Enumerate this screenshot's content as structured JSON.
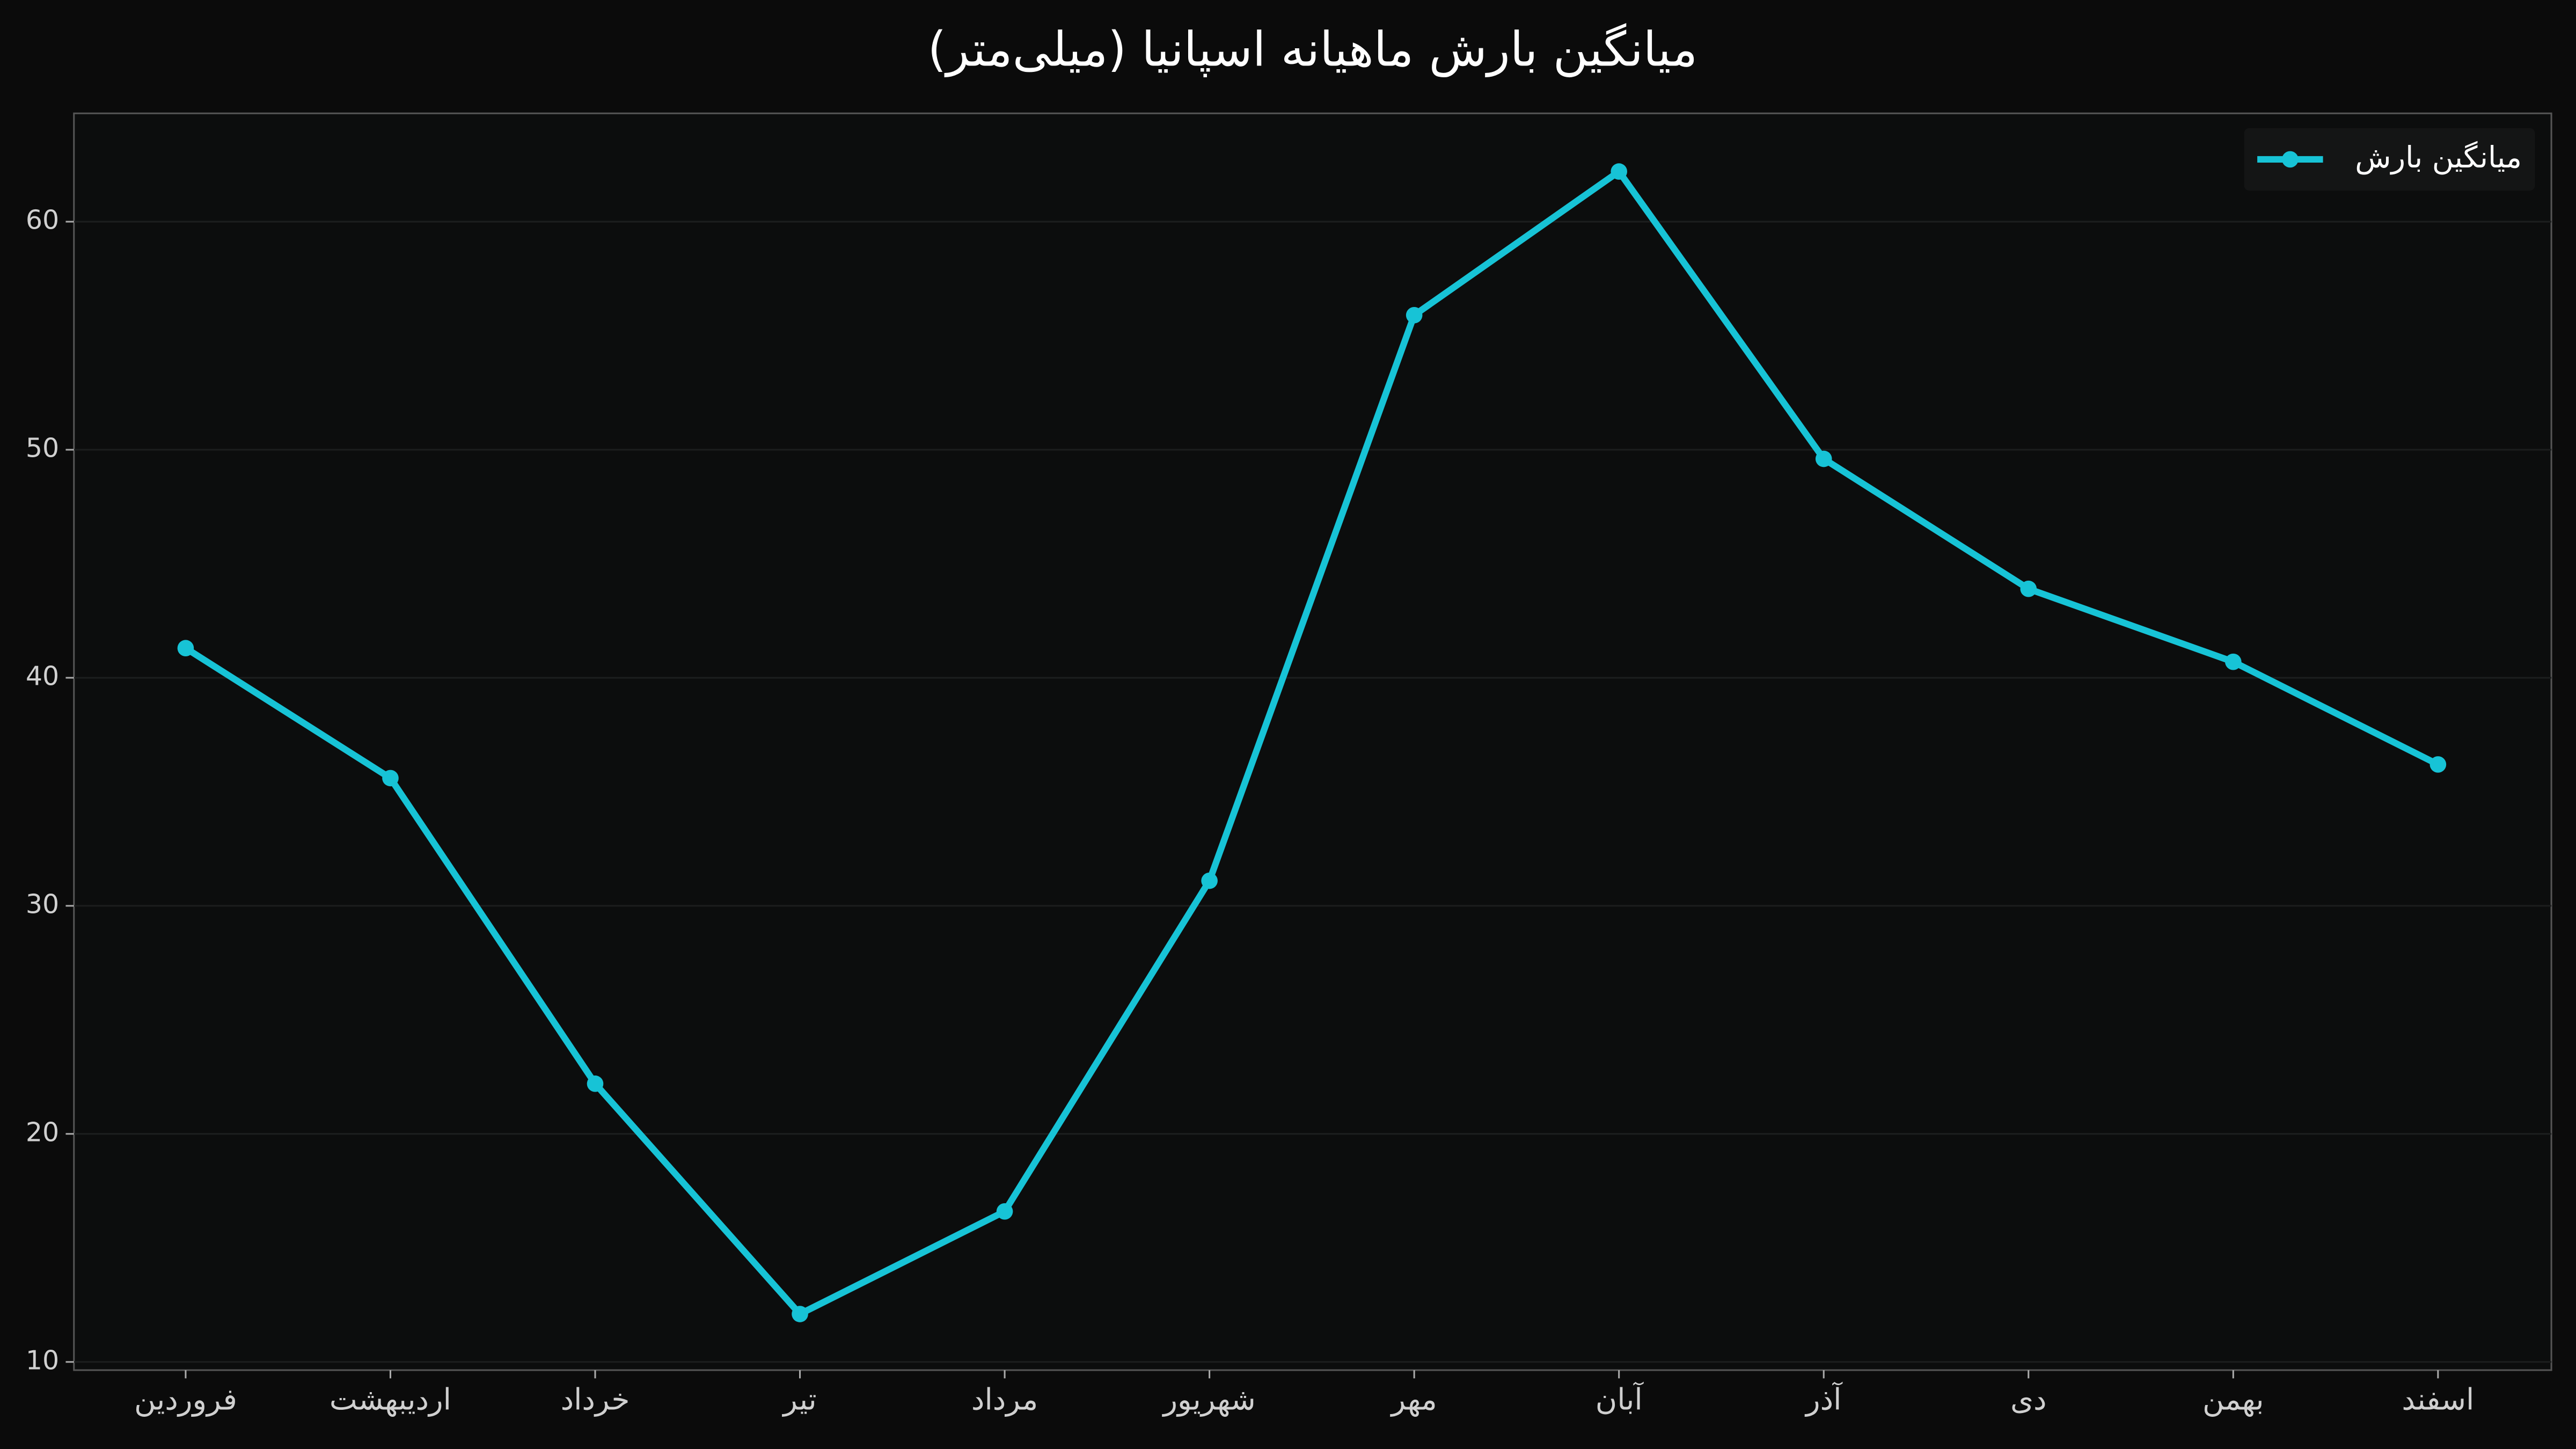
{
  "chart_data": {
    "type": "line",
    "title": "میانگین بارش ماهیانه اسپانیا (میلی‌متر)",
    "categories": [
      "فروردین",
      "اردیبهشت",
      "خرداد",
      "تیر",
      "مرداد",
      "شهریور",
      "مهر",
      "آبان",
      "آذر",
      "دی",
      "بهمن",
      "اسفند"
    ],
    "series": [
      {
        "name": "میانگین بارش",
        "color": "#17c3d6",
        "values": [
          41.3,
          35.6,
          22.2,
          12.1,
          16.6,
          31.1,
          55.9,
          62.2,
          49.6,
          43.9,
          40.7,
          36.2
        ]
      }
    ],
    "ylim": [
      9.64,
      64.75
    ],
    "yticks": [
      10,
      20,
      30,
      40,
      50,
      60
    ],
    "grid": true,
    "legend": "upper-right"
  }
}
